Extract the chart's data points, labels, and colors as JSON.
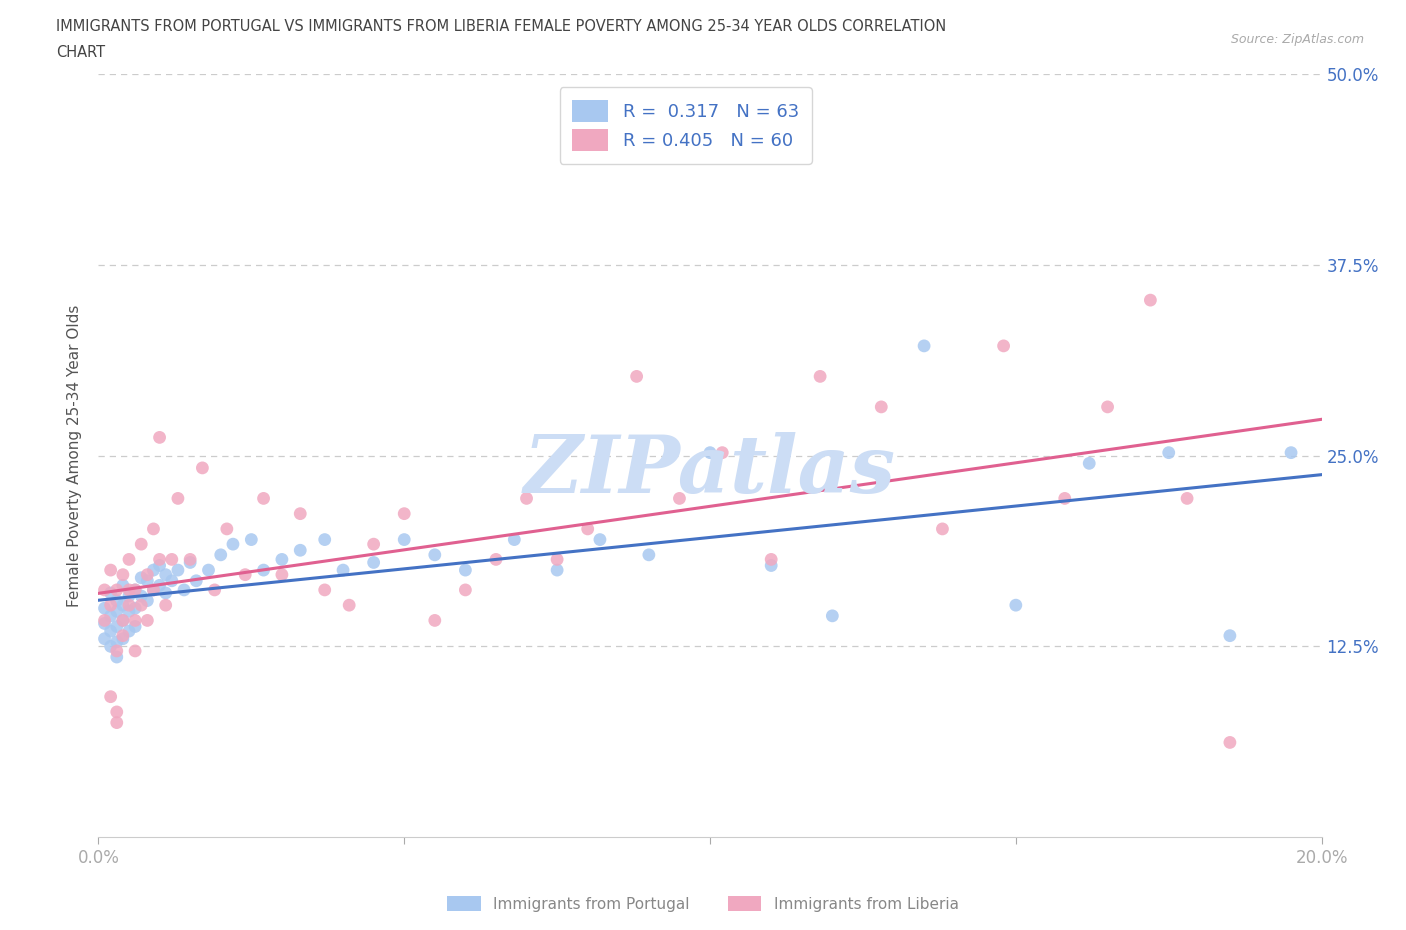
{
  "title_line1": "IMMIGRANTS FROM PORTUGAL VS IMMIGRANTS FROM LIBERIA FEMALE POVERTY AMONG 25-34 YEAR OLDS CORRELATION",
  "title_line2": "CHART",
  "source_text": "Source: ZipAtlas.com",
  "ylabel": "Female Poverty Among 25-34 Year Olds",
  "xlim": [
    0.0,
    0.2
  ],
  "ylim": [
    0.0,
    0.5
  ],
  "color_portugal": "#a8c8f0",
  "color_liberia": "#f0a8c0",
  "line_color_portugal": "#4472c4",
  "line_color_liberia": "#e06090",
  "R_portugal": 0.317,
  "N_portugal": 63,
  "R_liberia": 0.405,
  "N_liberia": 60,
  "watermark": "ZIPatlas",
  "watermark_color": "#ccddf5",
  "legend_label_portugal": "Immigrants from Portugal",
  "legend_label_liberia": "Immigrants from Liberia",
  "tick_label_color": "#4472c4",
  "portugal_x": [
    0.001,
    0.001,
    0.001,
    0.002,
    0.002,
    0.002,
    0.002,
    0.003,
    0.003,
    0.003,
    0.003,
    0.003,
    0.004,
    0.004,
    0.004,
    0.004,
    0.005,
    0.005,
    0.005,
    0.006,
    0.006,
    0.006,
    0.007,
    0.007,
    0.008,
    0.008,
    0.009,
    0.009,
    0.01,
    0.01,
    0.011,
    0.011,
    0.012,
    0.013,
    0.014,
    0.015,
    0.016,
    0.018,
    0.02,
    0.022,
    0.025,
    0.027,
    0.03,
    0.033,
    0.037,
    0.04,
    0.045,
    0.05,
    0.055,
    0.06,
    0.068,
    0.075,
    0.082,
    0.09,
    0.1,
    0.11,
    0.12,
    0.135,
    0.15,
    0.162,
    0.175,
    0.185,
    0.195
  ],
  "portugal_y": [
    0.15,
    0.14,
    0.13,
    0.16,
    0.145,
    0.135,
    0.125,
    0.155,
    0.148,
    0.138,
    0.128,
    0.118,
    0.165,
    0.152,
    0.142,
    0.13,
    0.158,
    0.148,
    0.135,
    0.162,
    0.15,
    0.138,
    0.17,
    0.158,
    0.168,
    0.155,
    0.175,
    0.162,
    0.178,
    0.165,
    0.172,
    0.16,
    0.168,
    0.175,
    0.162,
    0.18,
    0.168,
    0.175,
    0.185,
    0.192,
    0.195,
    0.175,
    0.182,
    0.188,
    0.195,
    0.175,
    0.18,
    0.195,
    0.185,
    0.175,
    0.195,
    0.175,
    0.195,
    0.185,
    0.252,
    0.178,
    0.145,
    0.322,
    0.152,
    0.245,
    0.252,
    0.132,
    0.252
  ],
  "liberia_x": [
    0.001,
    0.001,
    0.002,
    0.002,
    0.002,
    0.003,
    0.003,
    0.003,
    0.003,
    0.004,
    0.004,
    0.004,
    0.005,
    0.005,
    0.005,
    0.006,
    0.006,
    0.006,
    0.007,
    0.007,
    0.008,
    0.008,
    0.009,
    0.009,
    0.01,
    0.01,
    0.011,
    0.012,
    0.013,
    0.015,
    0.017,
    0.019,
    0.021,
    0.024,
    0.027,
    0.03,
    0.033,
    0.037,
    0.041,
    0.045,
    0.05,
    0.055,
    0.06,
    0.065,
    0.07,
    0.075,
    0.08,
    0.088,
    0.095,
    0.102,
    0.11,
    0.118,
    0.128,
    0.138,
    0.148,
    0.158,
    0.165,
    0.172,
    0.178,
    0.185
  ],
  "liberia_y": [
    0.162,
    0.142,
    0.175,
    0.092,
    0.152,
    0.082,
    0.162,
    0.122,
    0.075,
    0.142,
    0.172,
    0.132,
    0.162,
    0.152,
    0.182,
    0.122,
    0.162,
    0.142,
    0.192,
    0.152,
    0.172,
    0.142,
    0.162,
    0.202,
    0.182,
    0.262,
    0.152,
    0.182,
    0.222,
    0.182,
    0.242,
    0.162,
    0.202,
    0.172,
    0.222,
    0.172,
    0.212,
    0.162,
    0.152,
    0.192,
    0.212,
    0.142,
    0.162,
    0.182,
    0.222,
    0.182,
    0.202,
    0.302,
    0.222,
    0.252,
    0.182,
    0.302,
    0.282,
    0.202,
    0.322,
    0.222,
    0.282,
    0.352,
    0.222,
    0.062
  ]
}
